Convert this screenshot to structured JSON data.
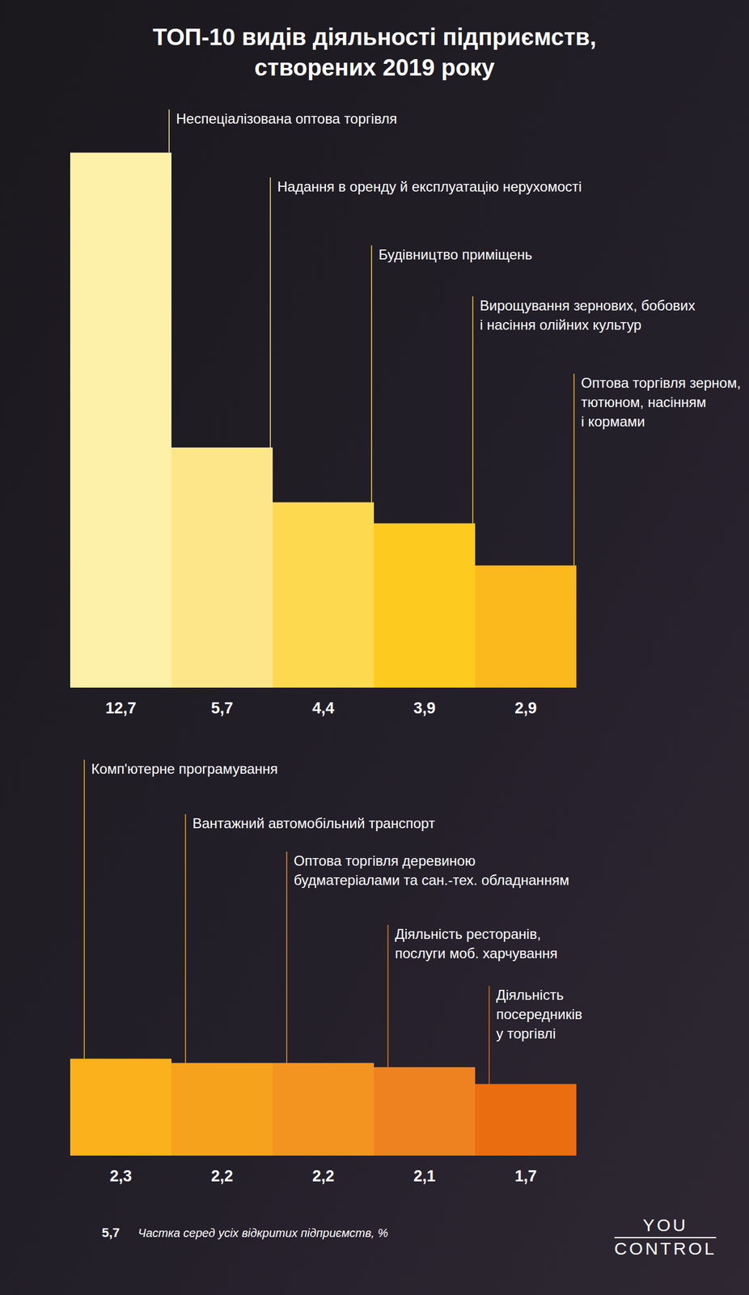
{
  "chart_data": {
    "type": "bar",
    "title": "ТОП-10 видів діяльності підприємств,\nстворених 2019 року",
    "categories": [
      "Неспеціалізована оптова торгівля",
      "Надання в оренду й експлуатацію нерухомості",
      "Будівництво приміщень",
      "Вирощування зернових, бобових\nі насіння олійних культур",
      "Оптова торгівля зерном,\nтютюном, насінням\nі кормами",
      "Комп'ютерне програмування",
      "Вантажний автомобільний транспорт",
      "Оптова торгівля деревиною\nбудматеріалами та сан.-тех. обладнанням",
      "Діяльність ресторанів,\nпослуги моб. харчування",
      "Діяльність\nпосередників\nу торгівлі"
    ],
    "values": [
      12.7,
      5.7,
      4.4,
      3.9,
      2.9,
      2.3,
      2.2,
      2.2,
      2.1,
      1.7
    ],
    "value_labels": [
      "12,7",
      "5,7",
      "4,4",
      "3,9",
      "2,9",
      "2,3",
      "2,2",
      "2,2",
      "2,1",
      "1,7"
    ],
    "colors": [
      "#fdf0a8",
      "#fde68a",
      "#fdd94f",
      "#fdcb20",
      "#fbb91d",
      "#fbb11b",
      "#f7a21d",
      "#f39320",
      "#ee8120",
      "#ea6d10"
    ],
    "ylim": [
      0,
      13
    ],
    "data_labels": true,
    "tick_labels": false,
    "annotations": [
      {
        "value": 5.7,
        "label": "5,7",
        "text": "Частка серед усіх відкритих підприємств, %"
      }
    ],
    "source": "YOU\nCONTROL"
  }
}
